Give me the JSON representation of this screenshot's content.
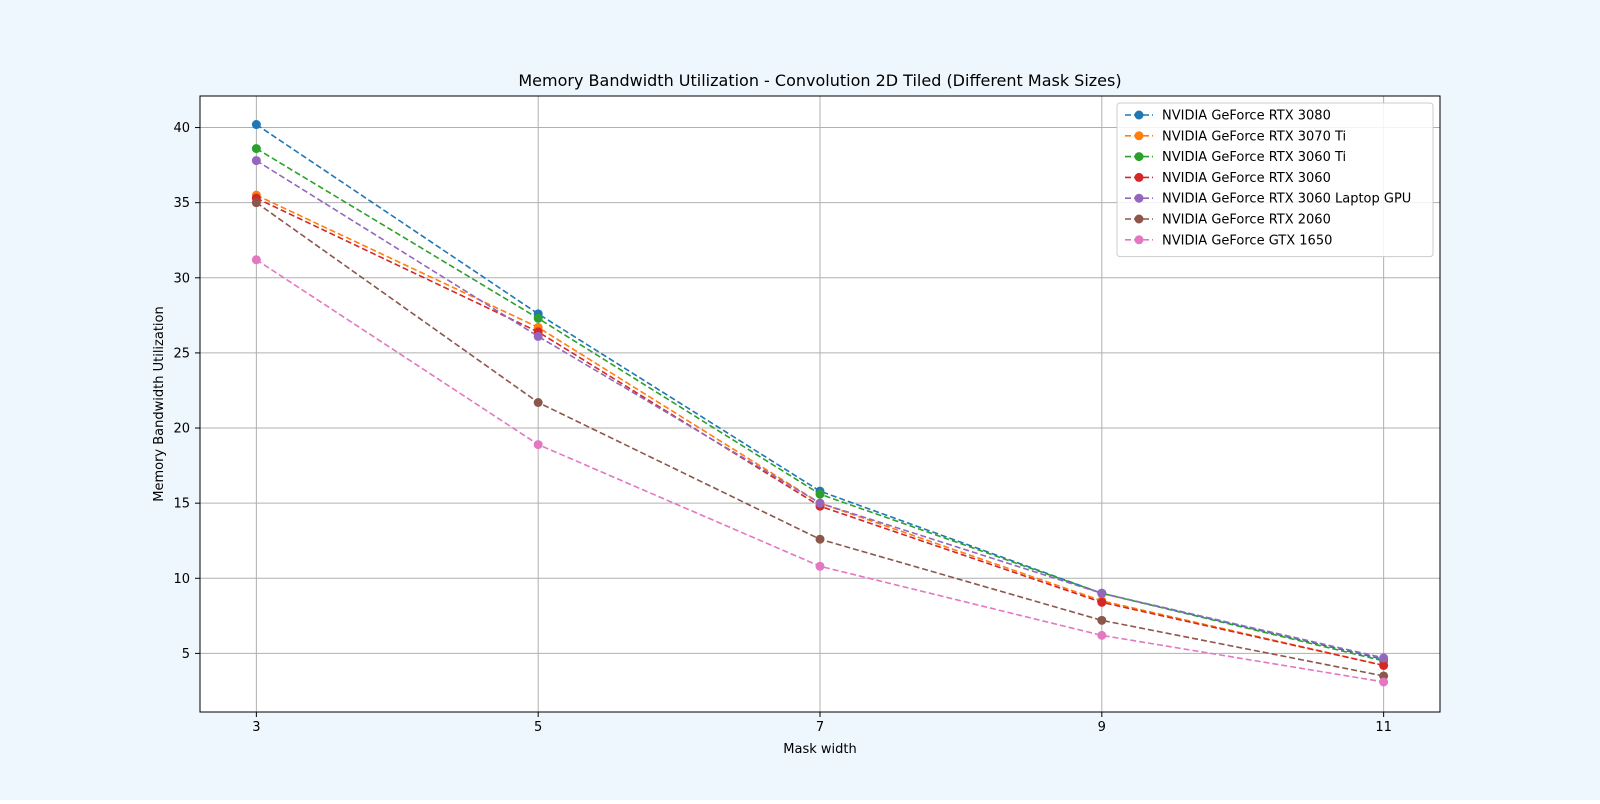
{
  "colors": {
    "figure_background": "#eef6fe",
    "axes_background": "#ffffff",
    "grid": "#b0b0b0",
    "text": "#000000"
  },
  "chart_data": {
    "type": "line",
    "title": "Memory Bandwidth Utilization - Convolution 2D Tiled (Different Mask Sizes)",
    "xlabel": "Mask width",
    "ylabel": "Memory Bandwidth Utilization",
    "x": [
      3,
      5,
      7,
      9,
      11
    ],
    "xticks": [
      "3",
      "5",
      "7",
      "9",
      "11"
    ],
    "yticks": [
      5,
      10,
      15,
      20,
      25,
      30,
      35,
      40
    ],
    "xlim": [
      2.6,
      11.4
    ],
    "ylim": [
      1.1,
      42.1
    ],
    "grid": true,
    "line_style": "dashed",
    "marker": "circle",
    "legend_position": "top-right",
    "series": [
      {
        "name": "NVIDIA GeForce RTX 3080",
        "color": "#1f77b4",
        "values": [
          40.2,
          27.6,
          15.8,
          9.0,
          4.6
        ]
      },
      {
        "name": "NVIDIA GeForce RTX 3070 Ti",
        "color": "#ff7f0e",
        "values": [
          35.5,
          26.7,
          15.0,
          8.5,
          4.2
        ]
      },
      {
        "name": "NVIDIA GeForce RTX 3060 Ti",
        "color": "#2ca02c",
        "values": [
          38.6,
          27.3,
          15.6,
          9.0,
          4.5
        ]
      },
      {
        "name": "NVIDIA GeForce RTX 3060",
        "color": "#d62728",
        "values": [
          35.3,
          26.4,
          14.8,
          8.4,
          4.2
        ]
      },
      {
        "name": "NVIDIA GeForce RTX 3060 Laptop GPU",
        "color": "#9467bd",
        "values": [
          37.8,
          26.1,
          15.0,
          9.0,
          4.7
        ]
      },
      {
        "name": "NVIDIA GeForce RTX 2060",
        "color": "#8c564b",
        "values": [
          35.0,
          21.7,
          12.6,
          7.2,
          3.5
        ]
      },
      {
        "name": "NVIDIA GeForce GTX 1650",
        "color": "#e377c2",
        "values": [
          31.2,
          18.9,
          10.8,
          6.2,
          3.1
        ]
      }
    ]
  }
}
